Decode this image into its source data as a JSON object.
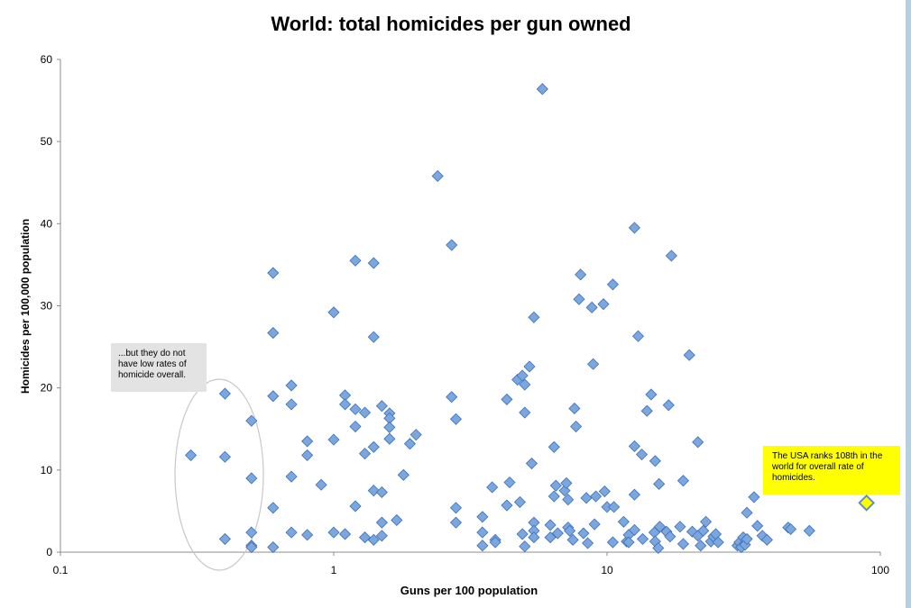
{
  "chart_data": {
    "type": "scatter",
    "title": "World: total homicides per gun owned",
    "xlabel": "Guns per 100 population",
    "ylabel": "Homicides per 100,000 population",
    "xscale": "log",
    "xlim": [
      0.1,
      100
    ],
    "ylim": [
      0,
      60
    ],
    "xticks": [
      "0.1",
      "1",
      "10",
      "100"
    ],
    "yticks": [
      "0",
      "10",
      "20",
      "30",
      "40",
      "50",
      "60"
    ],
    "grid": false,
    "legend": "none",
    "marker_color": "#7ba7e0",
    "marker_edge": "#3f6fb5",
    "highlight_color": "#ffff00",
    "points": [
      [
        0.3,
        11.8
      ],
      [
        0.4,
        19.3
      ],
      [
        0.4,
        11.6
      ],
      [
        0.4,
        1.6
      ],
      [
        0.5,
        16.0
      ],
      [
        0.5,
        9.0
      ],
      [
        0.5,
        2.4
      ],
      [
        0.5,
        0.8
      ],
      [
        0.5,
        0.6
      ],
      [
        0.6,
        34.0
      ],
      [
        0.6,
        26.7
      ],
      [
        0.6,
        19.0
      ],
      [
        0.6,
        5.4
      ],
      [
        0.6,
        0.6
      ],
      [
        0.7,
        20.3
      ],
      [
        0.7,
        18.0
      ],
      [
        0.7,
        9.2
      ],
      [
        0.7,
        2.4
      ],
      [
        0.8,
        13.5
      ],
      [
        0.8,
        11.8
      ],
      [
        0.8,
        2.1
      ],
      [
        0.9,
        8.2
      ],
      [
        1.0,
        29.2
      ],
      [
        1.0,
        13.7
      ],
      [
        1.0,
        2.4
      ],
      [
        1.1,
        19.1
      ],
      [
        1.1,
        18.0
      ],
      [
        1.1,
        2.2
      ],
      [
        1.2,
        35.5
      ],
      [
        1.2,
        17.4
      ],
      [
        1.2,
        15.3
      ],
      [
        1.2,
        5.6
      ],
      [
        1.3,
        17.0
      ],
      [
        1.3,
        12.0
      ],
      [
        1.3,
        1.8
      ],
      [
        1.4,
        35.2
      ],
      [
        1.4,
        26.2
      ],
      [
        1.4,
        12.8
      ],
      [
        1.4,
        7.5
      ],
      [
        1.4,
        1.5
      ],
      [
        1.5,
        17.8
      ],
      [
        1.5,
        7.3
      ],
      [
        1.5,
        3.6
      ],
      [
        1.5,
        2.0
      ],
      [
        1.6,
        16.9
      ],
      [
        1.6,
        16.3
      ],
      [
        1.6,
        15.2
      ],
      [
        1.6,
        13.8
      ],
      [
        1.7,
        3.9
      ],
      [
        1.8,
        9.4
      ],
      [
        1.9,
        13.2
      ],
      [
        2.0,
        14.3
      ],
      [
        2.4,
        45.8
      ],
      [
        2.7,
        37.4
      ],
      [
        2.7,
        18.9
      ],
      [
        2.8,
        16.2
      ],
      [
        2.8,
        5.4
      ],
      [
        2.8,
        3.6
      ],
      [
        3.5,
        4.3
      ],
      [
        3.5,
        2.4
      ],
      [
        3.5,
        0.8
      ],
      [
        3.8,
        7.9
      ],
      [
        3.9,
        1.5
      ],
      [
        3.9,
        1.2
      ],
      [
        4.3,
        18.6
      ],
      [
        4.3,
        5.7
      ],
      [
        4.4,
        8.5
      ],
      [
        4.7,
        21.0
      ],
      [
        4.8,
        6.1
      ],
      [
        4.9,
        2.2
      ],
      [
        4.9,
        21.5
      ],
      [
        5.0,
        20.4
      ],
      [
        5.0,
        17.0
      ],
      [
        5.0,
        0.7
      ],
      [
        5.2,
        22.6
      ],
      [
        5.3,
        10.8
      ],
      [
        5.4,
        28.6
      ],
      [
        5.4,
        3.6
      ],
      [
        5.4,
        2.6
      ],
      [
        5.4,
        1.8
      ],
      [
        5.8,
        56.4
      ],
      [
        6.2,
        3.3
      ],
      [
        6.2,
        1.8
      ],
      [
        6.4,
        12.8
      ],
      [
        6.4,
        6.8
      ],
      [
        6.5,
        8.1
      ],
      [
        6.6,
        2.3
      ],
      [
        7.0,
        7.5
      ],
      [
        7.1,
        8.4
      ],
      [
        7.2,
        3.0
      ],
      [
        7.2,
        6.4
      ],
      [
        7.3,
        2.6
      ],
      [
        7.5,
        1.5
      ],
      [
        7.6,
        17.5
      ],
      [
        7.7,
        15.3
      ],
      [
        7.9,
        30.8
      ],
      [
        8.0,
        33.8
      ],
      [
        8.2,
        2.3
      ],
      [
        8.4,
        6.6
      ],
      [
        8.5,
        1.1
      ],
      [
        8.8,
        29.8
      ],
      [
        8.9,
        22.9
      ],
      [
        9.0,
        3.4
      ],
      [
        9.1,
        6.8
      ],
      [
        9.7,
        30.2
      ],
      [
        9.8,
        7.4
      ],
      [
        10.0,
        5.5
      ],
      [
        10.5,
        32.6
      ],
      [
        10.5,
        1.2
      ],
      [
        10.6,
        5.5
      ],
      [
        11.5,
        3.7
      ],
      [
        11.8,
        1.3
      ],
      [
        12.0,
        2.1
      ],
      [
        12.0,
        1.2
      ],
      [
        12.6,
        39.5
      ],
      [
        12.6,
        12.9
      ],
      [
        12.6,
        7.0
      ],
      [
        12.6,
        2.7
      ],
      [
        13.0,
        26.3
      ],
      [
        13.4,
        11.9
      ],
      [
        13.5,
        1.6
      ],
      [
        14.0,
        17.2
      ],
      [
        14.5,
        19.2
      ],
      [
        14.9,
        2.4
      ],
      [
        15.0,
        11.1
      ],
      [
        15.0,
        1.3
      ],
      [
        15.4,
        0.5
      ],
      [
        15.5,
        8.3
      ],
      [
        15.6,
        3.1
      ],
      [
        16.5,
        2.5
      ],
      [
        16.8,
        17.9
      ],
      [
        17.0,
        1.9
      ],
      [
        17.2,
        36.1
      ],
      [
        18.5,
        3.1
      ],
      [
        19.0,
        8.7
      ],
      [
        19.0,
        1.0
      ],
      [
        20.0,
        24.0
      ],
      [
        20.5,
        2.5
      ],
      [
        21.5,
        13.4
      ],
      [
        21.5,
        2.0
      ],
      [
        22.0,
        0.8
      ],
      [
        22.5,
        2.6
      ],
      [
        23.0,
        3.7
      ],
      [
        24.0,
        1.3
      ],
      [
        24.5,
        1.9
      ],
      [
        25.0,
        2.2
      ],
      [
        25.5,
        1.2
      ],
      [
        30.0,
        0.8
      ],
      [
        30.5,
        1.2
      ],
      [
        31.0,
        0.6
      ],
      [
        31.5,
        1.8
      ],
      [
        32.0,
        0.9
      ],
      [
        32.5,
        1.6
      ],
      [
        32.5,
        4.8
      ],
      [
        34.5,
        6.7
      ],
      [
        35.5,
        3.2
      ],
      [
        37.0,
        2.0
      ],
      [
        38.5,
        1.5
      ],
      [
        46.0,
        3.0
      ],
      [
        47.0,
        2.8
      ],
      [
        55.0,
        2.6
      ]
    ],
    "highlight_point": [
      89,
      6.0
    ],
    "annotations": [
      {
        "text_lines": [
          "...but they do not",
          "have low rates of",
          "homicide overall."
        ]
      },
      {
        "text_lines": [
          "The USA ranks 108th in the",
          "world for overall rate of",
          "homicides."
        ]
      }
    ]
  }
}
